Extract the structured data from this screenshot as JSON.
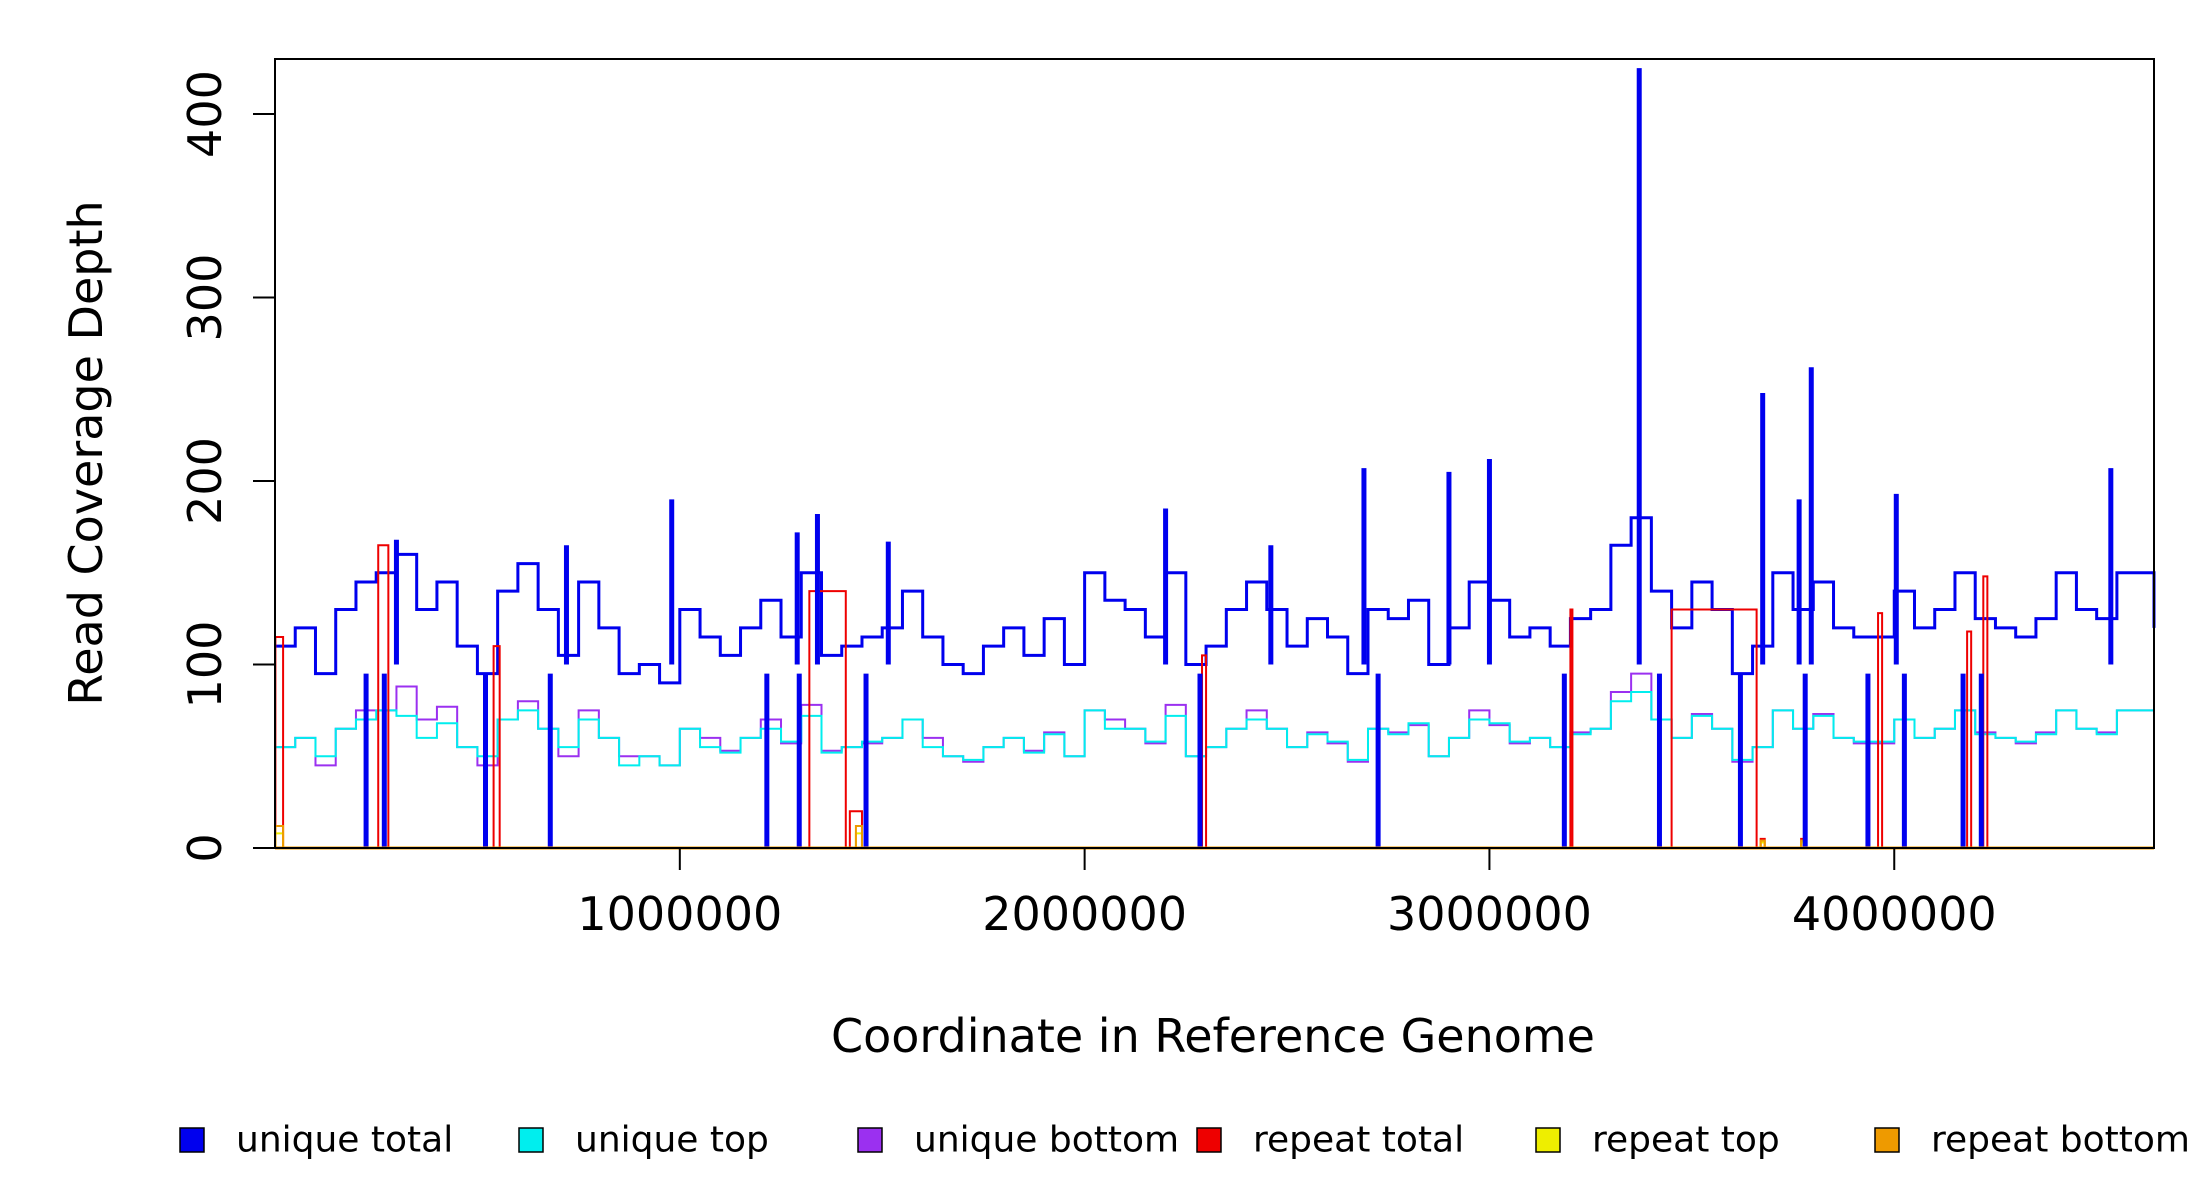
{
  "chart_data": {
    "type": "line",
    "title": "",
    "xlabel": "Coordinate in Reference Genome",
    "ylabel": "Read Coverage Depth",
    "xlim": [
      0,
      4641652
    ],
    "ylim": [
      0,
      430
    ],
    "x_ticks": [
      1000000,
      2000000,
      3000000,
      4000000
    ],
    "y_ticks": [
      0,
      100,
      200,
      300,
      400
    ],
    "x_tick_labels": [
      "1000000",
      "2000000",
      "3000000",
      "4000000"
    ],
    "y_tick_labels": [
      "0",
      "100",
      "200",
      "300",
      "400"
    ],
    "grid": false,
    "legend_position": "bottom",
    "legend": [
      {
        "name": "unique total",
        "color": "#0000ee"
      },
      {
        "name": "unique top",
        "color": "#00eeee"
      },
      {
        "name": "unique bottom",
        "color": "#9b30f0"
      },
      {
        "name": "repeat total",
        "color": "#ee0000"
      },
      {
        "name": "repeat top",
        "color": "#eeee00"
      },
      {
        "name": "repeat bottom",
        "color": "#ee9a00"
      }
    ],
    "series": [
      {
        "name": "unique total",
        "color": "#0000ee",
        "x": [
          0,
          50000,
          100000,
          150000,
          200000,
          250000,
          300000,
          350000,
          400000,
          450000,
          500000,
          550000,
          600000,
          650000,
          700000,
          750000,
          800000,
          850000,
          900000,
          950000,
          1000000,
          1050000,
          1100000,
          1150000,
          1200000,
          1250000,
          1300000,
          1350000,
          1400000,
          1450000,
          1500000,
          1550000,
          1600000,
          1650000,
          1700000,
          1750000,
          1800000,
          1850000,
          1900000,
          1950000,
          2000000,
          2050000,
          2100000,
          2150000,
          2200000,
          2250000,
          2300000,
          2350000,
          2400000,
          2450000,
          2500000,
          2550000,
          2600000,
          2650000,
          2700000,
          2750000,
          2800000,
          2850000,
          2900000,
          2950000,
          3000000,
          3050000,
          3100000,
          3150000,
          3200000,
          3250000,
          3300000,
          3350000,
          3400000,
          3450000,
          3500000,
          3550000,
          3600000,
          3650000,
          3700000,
          3750000,
          3800000,
          3850000,
          3900000,
          3950000,
          4000000,
          4050000,
          4100000,
          4150000,
          4200000,
          4250000,
          4300000,
          4350000,
          4400000,
          4450000,
          4500000,
          4550000,
          4600000,
          4641652
        ],
        "y": [
          110,
          120,
          95,
          130,
          145,
          150,
          160,
          130,
          145,
          110,
          95,
          140,
          155,
          130,
          105,
          145,
          120,
          95,
          100,
          90,
          130,
          115,
          105,
          120,
          135,
          115,
          150,
          105,
          110,
          115,
          120,
          140,
          115,
          100,
          95,
          110,
          120,
          105,
          125,
          100,
          150,
          135,
          130,
          115,
          150,
          100,
          110,
          130,
          145,
          130,
          110,
          125,
          115,
          95,
          130,
          125,
          135,
          100,
          120,
          145,
          135,
          115,
          120,
          110,
          125,
          130,
          165,
          180,
          140,
          120,
          145,
          130,
          95,
          110,
          150,
          130,
          145,
          120,
          115,
          115,
          140,
          120,
          130,
          150,
          125,
          120,
          115,
          125,
          150,
          130,
          125,
          150,
          150,
          120
        ]
      },
      {
        "name": "unique top",
        "color": "#00eeee",
        "x": [
          0,
          50000,
          100000,
          150000,
          200000,
          250000,
          300000,
          350000,
          400000,
          450000,
          500000,
          550000,
          600000,
          650000,
          700000,
          750000,
          800000,
          850000,
          900000,
          950000,
          1000000,
          1050000,
          1100000,
          1150000,
          1200000,
          1250000,
          1300000,
          1350000,
          1400000,
          1450000,
          1500000,
          1550000,
          1600000,
          1650000,
          1700000,
          1750000,
          1800000,
          1850000,
          1900000,
          1950000,
          2000000,
          2050000,
          2100000,
          2150000,
          2200000,
          2250000,
          2300000,
          2350000,
          2400000,
          2450000,
          2500000,
          2550000,
          2600000,
          2650000,
          2700000,
          2750000,
          2800000,
          2850000,
          2900000,
          2950000,
          3000000,
          3050000,
          3100000,
          3150000,
          3200000,
          3250000,
          3300000,
          3350000,
          3400000,
          3450000,
          3500000,
          3550000,
          3600000,
          3650000,
          3700000,
          3750000,
          3800000,
          3850000,
          3900000,
          3950000,
          4000000,
          4050000,
          4100000,
          4150000,
          4200000,
          4250000,
          4300000,
          4350000,
          4400000,
          4450000,
          4500000,
          4550000,
          4600000,
          4641652
        ],
        "y": [
          55,
          60,
          50,
          65,
          70,
          75,
          72,
          60,
          68,
          55,
          50,
          70,
          75,
          65,
          55,
          70,
          60,
          45,
          50,
          45,
          65,
          55,
          52,
          60,
          65,
          58,
          72,
          52,
          55,
          58,
          60,
          70,
          55,
          50,
          48,
          55,
          60,
          52,
          62,
          50,
          75,
          65,
          65,
          58,
          72,
          50,
          55,
          65,
          70,
          65,
          55,
          62,
          58,
          48,
          65,
          62,
          68,
          50,
          60,
          70,
          68,
          58,
          60,
          55,
          62,
          65,
          80,
          85,
          70,
          60,
          72,
          65,
          48,
          55,
          75,
          65,
          72,
          60,
          58,
          58,
          70,
          60,
          65,
          75,
          62,
          60,
          58,
          62,
          75,
          65,
          62,
          75,
          75,
          60
        ]
      },
      {
        "name": "unique bottom",
        "color": "#9b30f0",
        "x": [
          0,
          50000,
          100000,
          150000,
          200000,
          250000,
          300000,
          350000,
          400000,
          450000,
          500000,
          550000,
          600000,
          650000,
          700000,
          750000,
          800000,
          850000,
          900000,
          950000,
          1000000,
          1050000,
          1100000,
          1150000,
          1200000,
          1250000,
          1300000,
          1350000,
          1400000,
          1450000,
          1500000,
          1550000,
          1600000,
          1650000,
          1700000,
          1750000,
          1800000,
          1850000,
          1900000,
          1950000,
          2000000,
          2050000,
          2100000,
          2150000,
          2200000,
          2250000,
          2300000,
          2350000,
          2400000,
          2450000,
          2500000,
          2550000,
          2600000,
          2650000,
          2700000,
          2750000,
          2800000,
          2850000,
          2900000,
          2950000,
          3000000,
          3050000,
          3100000,
          3150000,
          3200000,
          3250000,
          3300000,
          3350000,
          3400000,
          3450000,
          3500000,
          3550000,
          3600000,
          3650000,
          3700000,
          3750000,
          3800000,
          3850000,
          3900000,
          3950000,
          4000000,
          4050000,
          4100000,
          4150000,
          4200000,
          4250000,
          4300000,
          4350000,
          4400000,
          4450000,
          4500000,
          4550000,
          4600000,
          4641652
        ],
        "y": [
          55,
          60,
          45,
          65,
          75,
          75,
          88,
          70,
          77,
          55,
          45,
          70,
          80,
          65,
          50,
          75,
          60,
          50,
          50,
          45,
          65,
          60,
          53,
          60,
          70,
          57,
          78,
          53,
          55,
          57,
          60,
          70,
          60,
          50,
          47,
          55,
          60,
          53,
          63,
          50,
          75,
          70,
          65,
          57,
          78,
          50,
          55,
          65,
          75,
          65,
          55,
          63,
          57,
          47,
          65,
          63,
          67,
          50,
          60,
          75,
          67,
          57,
          60,
          55,
          63,
          65,
          85,
          95,
          70,
          60,
          73,
          65,
          47,
          55,
          75,
          65,
          73,
          60,
          57,
          57,
          70,
          60,
          65,
          75,
          63,
          60,
          57,
          63,
          75,
          65,
          63,
          75,
          75,
          60
        ]
      },
      {
        "name": "repeat total",
        "color": "#ee0000",
        "x": [
          0,
          1000,
          15000,
          20000,
          40000,
          100000,
          200000,
          255000,
          270000,
          280000,
          290000,
          540000,
          555000,
          1305000,
          1320000,
          1410000,
          1420000,
          1435000,
          1450000,
          2270000,
          2290000,
          2300000,
          3180000,
          3200000,
          3205000,
          3440000,
          3450000,
          3660000,
          3670000,
          3680000,
          3760000,
          3770000,
          3780000,
          3950000,
          3960000,
          3970000,
          4170000,
          4180000,
          4190000,
          4210000,
          4220000,
          4230000,
          4641652
        ],
        "y": [
          0,
          115,
          115,
          0,
          0,
          0,
          0,
          165,
          165,
          0,
          0,
          110,
          0,
          0,
          140,
          0,
          20,
          20,
          0,
          0,
          105,
          0,
          0,
          130,
          0,
          0,
          130,
          0,
          5,
          0,
          0,
          5,
          0,
          0,
          128,
          0,
          0,
          118,
          0,
          0,
          148,
          0,
          0
        ]
      },
      {
        "name": "repeat top",
        "color": "#eeee00",
        "x": [
          0,
          1000,
          15000,
          20000,
          1420000,
          1435000,
          1450000,
          3660000,
          3670000,
          3680000,
          3760000,
          3770000,
          3780000,
          4641652
        ],
        "y": [
          0,
          8,
          8,
          0,
          0,
          8,
          0,
          0,
          3,
          0,
          0,
          3,
          0,
          0
        ]
      },
      {
        "name": "repeat bottom",
        "color": "#ee9a00",
        "x": [
          0,
          1000,
          15000,
          20000,
          1420000,
          1435000,
          1450000,
          3660000,
          3670000,
          3680000,
          3760000,
          3770000,
          3780000,
          4641652
        ],
        "y": [
          0,
          12,
          12,
          0,
          0,
          12,
          0,
          0,
          4,
          0,
          0,
          4,
          0,
          0
        ]
      }
    ],
    "spikes": [
      {
        "x": 3370000,
        "y": 425
      },
      {
        "x": 3795000,
        "y": 262
      },
      {
        "x": 3675000,
        "y": 248
      },
      {
        "x": 3000000,
        "y": 212
      },
      {
        "x": 2690000,
        "y": 207
      },
      {
        "x": 4535000,
        "y": 207
      },
      {
        "x": 2900000,
        "y": 205
      },
      {
        "x": 4005000,
        "y": 193
      },
      {
        "x": 3765000,
        "y": 190
      },
      {
        "x": 980000,
        "y": 190
      },
      {
        "x": 2200000,
        "y": 185
      },
      {
        "x": 1340000,
        "y": 182
      },
      {
        "x": 1290000,
        "y": 172
      },
      {
        "x": 300000,
        "y": 168
      },
      {
        "x": 1515000,
        "y": 167
      },
      {
        "x": 720000,
        "y": 165
      },
      {
        "x": 2460000,
        "y": 165
      }
    ],
    "dips": [
      {
        "x": 225000,
        "y": 0
      },
      {
        "x": 270000,
        "y": 0
      },
      {
        "x": 520000,
        "y": 0
      },
      {
        "x": 680000,
        "y": 0
      },
      {
        "x": 1215000,
        "y": 0
      },
      {
        "x": 1295000,
        "y": 0
      },
      {
        "x": 1460000,
        "y": 0
      },
      {
        "x": 2285000,
        "y": 0
      },
      {
        "x": 2725000,
        "y": 0
      },
      {
        "x": 3185000,
        "y": 0
      },
      {
        "x": 3420000,
        "y": 0
      },
      {
        "x": 3620000,
        "y": 0
      },
      {
        "x": 3780000,
        "y": 0
      },
      {
        "x": 3935000,
        "y": 0
      },
      {
        "x": 4025000,
        "y": 0
      },
      {
        "x": 4170000,
        "y": 0
      },
      {
        "x": 4215000,
        "y": 0
      }
    ]
  }
}
